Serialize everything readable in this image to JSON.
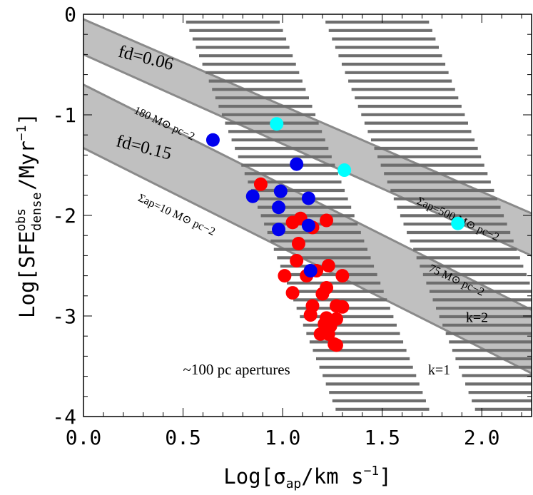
{
  "chart_data": {
    "type": "scatter",
    "xlabel": "Log[σap/km s−1]",
    "ylabel": "Log[SFEdense obs/Myr−1]",
    "xlim": [
      0.0,
      2.25
    ],
    "ylim": [
      -4,
      0
    ],
    "x_ticks": [
      {
        "value": 0.0,
        "label": "0.0"
      },
      {
        "value": 0.5,
        "label": "0.5"
      },
      {
        "value": 1.0,
        "label": "1.0"
      },
      {
        "value": 1.5,
        "label": "1.5"
      },
      {
        "value": 2.0,
        "label": "2.0"
      }
    ],
    "y_ticks": [
      {
        "value": 0,
        "label": "0"
      },
      {
        "value": -1,
        "label": "-1"
      },
      {
        "value": -2,
        "label": "-2"
      },
      {
        "value": -3,
        "label": "-3"
      },
      {
        "value": -4,
        "label": "-4"
      }
    ],
    "gray_bands": [
      {
        "name": "fd=0.06",
        "x": [
          0.0,
          2.25
        ],
        "lower_y": [
          -0.4,
          -2.4
        ],
        "upper_y": [
          -0.05,
          -1.98
        ],
        "color": "#c0c0c0",
        "edge": "#8a8a8a"
      },
      {
        "name": "fd=0.15",
        "x": [
          0.0,
          2.25
        ],
        "lower_y": [
          -1.33,
          -3.57
        ],
        "upper_y": [
          -0.7,
          -2.94
        ],
        "color": "#c0c0c0",
        "edge": "#8a8a8a"
      }
    ],
    "hatched_bands": [
      {
        "name": "k=2",
        "x_at_top": [
          0.5,
          0.97
        ],
        "x_at_bottom": [
          1.28,
          1.75
        ],
        "color": "#6e6e6e"
      },
      {
        "name": "k=1",
        "x_at_top": [
          1.2,
          1.72
        ],
        "x_at_bottom": [
          1.98,
          2.5
        ],
        "color": "#6e6e6e"
      }
    ],
    "series": [
      {
        "name": "red",
        "color": "#ff0000",
        "points": [
          [
            0.89,
            -1.69
          ],
          [
            1.05,
            -2.07
          ],
          [
            1.09,
            -2.03
          ],
          [
            1.15,
            -2.12
          ],
          [
            1.22,
            -2.05
          ],
          [
            1.08,
            -2.28
          ],
          [
            1.07,
            -2.45
          ],
          [
            1.17,
            -2.55
          ],
          [
            1.01,
            -2.6
          ],
          [
            1.12,
            -2.6
          ],
          [
            1.23,
            -2.5
          ],
          [
            1.3,
            -2.6
          ],
          [
            1.22,
            -2.72
          ],
          [
            1.05,
            -2.77
          ],
          [
            1.2,
            -2.78
          ],
          [
            1.15,
            -2.9
          ],
          [
            1.27,
            -2.9
          ],
          [
            1.3,
            -2.91
          ],
          [
            1.14,
            -2.99
          ],
          [
            1.22,
            -3.02
          ],
          [
            1.27,
            -3.03
          ],
          [
            1.21,
            -3.08
          ],
          [
            1.24,
            -3.1
          ],
          [
            1.19,
            -3.18
          ],
          [
            1.23,
            -3.18
          ],
          [
            1.26,
            -3.28
          ],
          [
            1.27,
            -3.29
          ]
        ]
      },
      {
        "name": "blue",
        "color": "#0000ee",
        "points": [
          [
            0.65,
            -1.25
          ],
          [
            1.07,
            -1.49
          ],
          [
            0.99,
            -1.76
          ],
          [
            1.13,
            -1.83
          ],
          [
            0.85,
            -1.81
          ],
          [
            0.98,
            -1.92
          ],
          [
            1.13,
            -2.1
          ],
          [
            0.98,
            -2.14
          ],
          [
            1.14,
            -2.55
          ]
        ]
      },
      {
        "name": "cyan",
        "color": "#00ffff",
        "points": [
          [
            0.97,
            -1.09
          ],
          [
            1.31,
            -1.55
          ],
          [
            1.88,
            -2.08
          ]
        ]
      }
    ],
    "annotations": [
      {
        "key": "fd006",
        "text": "fd=0.06",
        "x": 0.17,
        "y": -0.42,
        "rotate": 14,
        "size": 25
      },
      {
        "key": "fd015",
        "text": "fd=0.15",
        "x": 0.16,
        "y": -1.31,
        "rotate": 14,
        "size": 25
      },
      {
        "key": "m180",
        "text": "180 M⊙ pc−2",
        "x": 0.25,
        "y": -0.98,
        "rotate": 25,
        "size": 16
      },
      {
        "key": "sap10",
        "text": "Σap=10 M⊙ pc−2",
        "x": 0.27,
        "y": -1.85,
        "rotate": 25,
        "size": 16
      },
      {
        "key": "sap500",
        "text": "Σap=500 M⊙ pc−2",
        "x": 1.67,
        "y": -1.88,
        "rotate": 25,
        "size": 16
      },
      {
        "key": "m75",
        "text": "75 M⊙ pc−2",
        "x": 1.73,
        "y": -2.55,
        "rotate": 25,
        "size": 16
      },
      {
        "key": "k2",
        "text": "k=2",
        "x": 1.92,
        "y": -3.06,
        "rotate": 0,
        "size": 20
      },
      {
        "key": "k1",
        "text": "k=1",
        "x": 1.73,
        "y": -3.58,
        "rotate": 0,
        "size": 20
      },
      {
        "key": "apert",
        "text": "~100 pc apertures",
        "x": 0.5,
        "y": -3.58,
        "rotate": 0,
        "size": 21
      }
    ]
  }
}
